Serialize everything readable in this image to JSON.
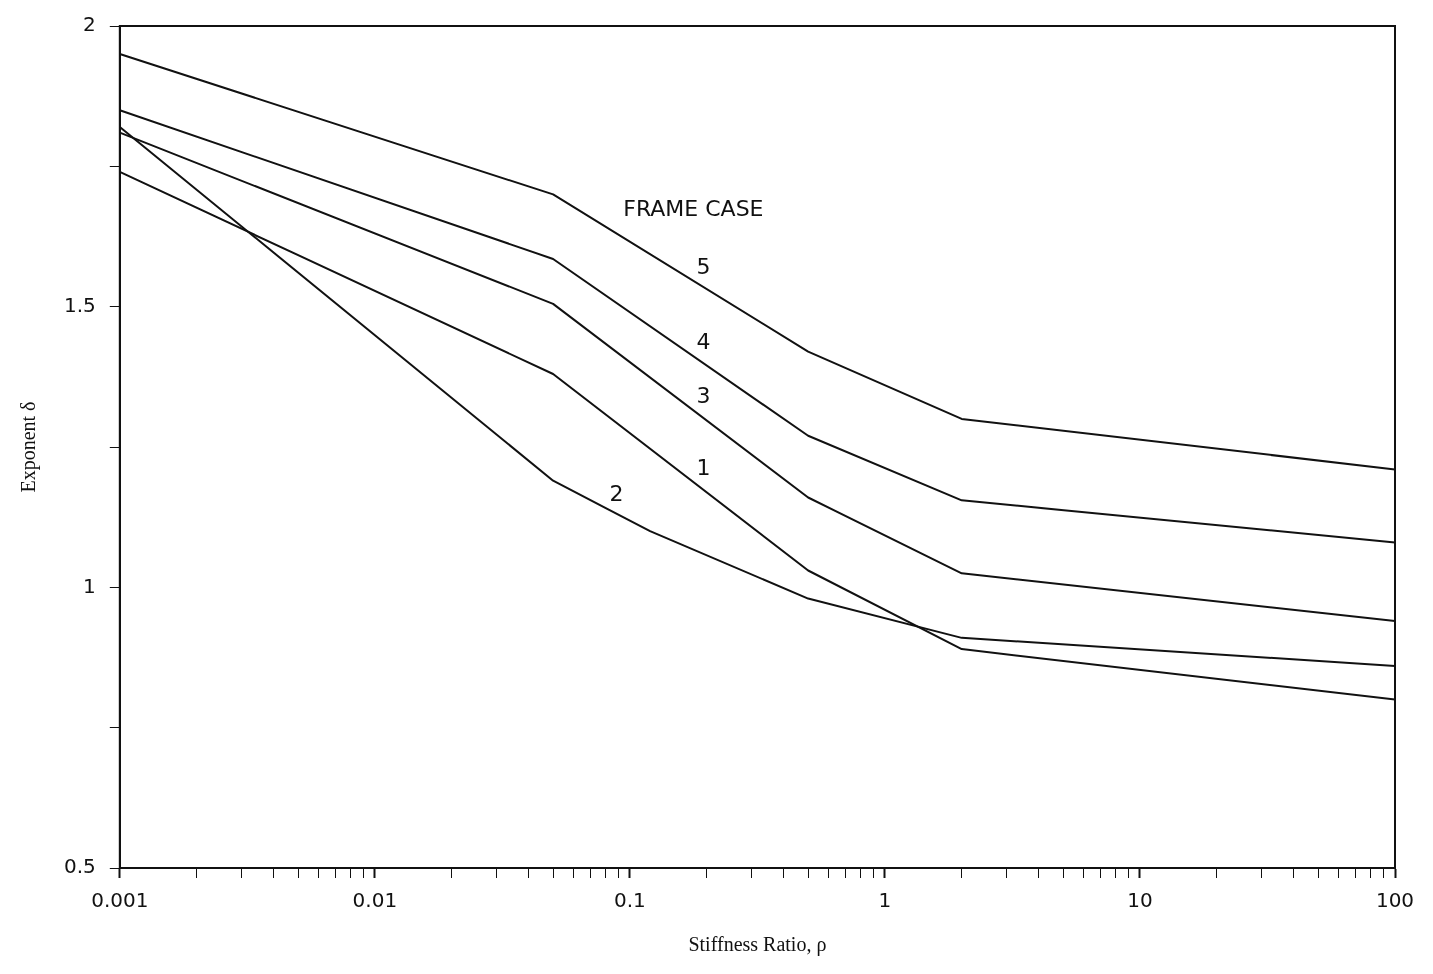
{
  "chart_data": {
    "type": "line",
    "xlabel": "Stiffness Ratio, ρ",
    "ylabel": "Exponent δ",
    "legend_title": "FRAME CASE",
    "log": "x",
    "marker": "none",
    "line_style": "solid",
    "grid": false,
    "legend": false,
    "xlim": [
      0.001,
      100
    ],
    "ylim": [
      0.5,
      2
    ],
    "xticks": [
      "0.001",
      {
        "value": 0.002,
        "label": null
      },
      {
        "value": 0.003,
        "label": null
      },
      {
        "value": 0.004,
        "label": null
      },
      {
        "value": 0.005,
        "label": null
      },
      {
        "value": 0.006,
        "label": null
      },
      {
        "value": 0.007,
        "label": null
      },
      {
        "value": 0.008,
        "label": null
      },
      {
        "value": 0.009,
        "label": null
      },
      {
        "value": 0.01,
        "label": "0.01"
      },
      {
        "value": 0.02,
        "label": null
      },
      {
        "value": 0.03,
        "label": null
      },
      {
        "value": 0.04,
        "label": null
      },
      {
        "value": 0.05,
        "label": null
      },
      {
        "value": 0.06,
        "label": null
      },
      {
        "value": 0.07,
        "label": null
      },
      {
        "value": 0.08,
        "label": null
      },
      {
        "value": 0.09,
        "label": null
      },
      {
        "value": 0.1,
        "label": "0.1"
      },
      {
        "value": 0.2,
        "label": null
      },
      {
        "value": 0.3,
        "label": null
      },
      {
        "value": 0.4,
        "label": null
      },
      {
        "value": 0.5,
        "label": null
      },
      {
        "value": 0.6,
        "label": null
      },
      {
        "value": 0.7,
        "label": null
      },
      {
        "value": 0.8,
        "label": null
      },
      {
        "value": 0.9,
        "label": null
      },
      {
        "value": 1,
        "label": "1"
      },
      {
        "value": 2,
        "label": null
      },
      {
        "value": 3,
        "label": null
      },
      {
        "value": 4,
        "label": null
      },
      {
        "value": 5,
        "label": null
      },
      {
        "value": 6,
        "label": null
      },
      {
        "value": 7,
        "label": null
      },
      {
        "value": 8,
        "label": null
      },
      {
        "value": 9,
        "label": null
      },
      {
        "value": 10,
        "label": "10"
      },
      {
        "value": 20,
        "label": null
      },
      {
        "value": 30,
        "label": null
      },
      {
        "value": 40,
        "label": null
      },
      {
        "value": 50,
        "label": null
      },
      {
        "value": 60,
        "label": null
      },
      {
        "value": 70,
        "label": null
      },
      {
        "value": 80,
        "label": null
      },
      {
        "value": 90,
        "label": null
      },
      {
        "value": 100,
        "label": "100"
      }
    ],
    "yticks": [
      {
        "value": 0.5,
        "label": "0.5"
      },
      {
        "value": 0.75,
        "label": null
      },
      {
        "value": 1,
        "label": "1"
      },
      {
        "value": 1.25,
        "label": null
      },
      {
        "value": 1.5,
        "label": "1.5"
      },
      {
        "value": 1.75,
        "label": null
      },
      {
        "value": 2,
        "label": "2"
      }
    ],
    "x": [
      0.001,
      0.05,
      0.5,
      2,
      100
    ],
    "series": [
      {
        "name": "5",
        "color": "#111111",
        "values": [
          1.95,
          1.7,
          1.42,
          1.3,
          1.21
        ]
      },
      {
        "name": "4",
        "color": "#111111",
        "values": [
          1.85,
          1.585,
          1.27,
          1.155,
          1.08
        ]
      },
      {
        "name": "3",
        "color": "#111111",
        "values": [
          1.81,
          1.505,
          1.16,
          1.025,
          0.94
        ]
      },
      {
        "name": "1",
        "color": "#111111",
        "values": [
          1.74,
          1.38,
          1.03,
          0.89,
          0.8
        ]
      },
      {
        "name": "2",
        "color": "#111111",
        "x": [
          0.001,
          0.05,
          0.12,
          0.5,
          2,
          100
        ],
        "values": [
          1.82,
          1.19,
          1.1,
          0.98,
          0.91,
          0.86
        ]
      }
    ]
  }
}
